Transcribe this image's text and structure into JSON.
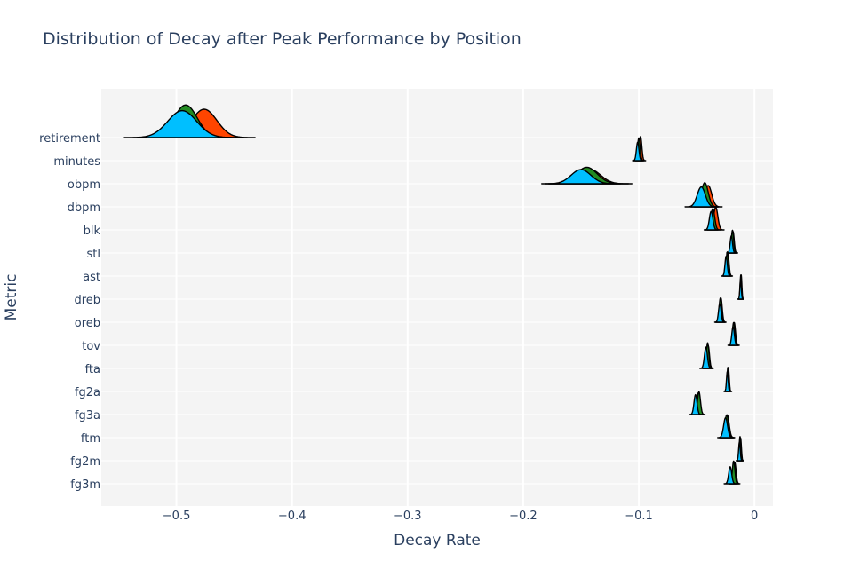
{
  "chart_data": {
    "type": "ridgeline",
    "title": "Distribution of Decay after Peak Performance by Position",
    "xlabel": "Decay Rate",
    "ylabel": "Metric",
    "xlim": [
      -0.565,
      0.016
    ],
    "x_ticks": [
      -0.5,
      -0.4,
      -0.3,
      -0.2,
      -0.1,
      0
    ],
    "x_tick_labels": [
      "−0.5",
      "−0.4",
      "−0.3",
      "−0.2",
      "−0.1",
      "0"
    ],
    "grid": true,
    "legend": "none",
    "colors": {
      "plot_bg": "#f4f4f4",
      "grid": "#ffffff",
      "text": "#2a3f5f",
      "series_red": "#ff4500",
      "series_green": "#228b22",
      "series_blue": "#00bfff",
      "outline": "#000000"
    },
    "categories": [
      "retirement",
      "minutes",
      "obpm",
      "dbpm",
      "blk",
      "stl",
      "ast",
      "dreb",
      "oreb",
      "tov",
      "fta",
      "fg2a",
      "fg3a",
      "ftm",
      "fg2m",
      "fg3m"
    ],
    "series": [
      {
        "color": "#ff4500",
        "distributions": [
          {
            "category": "retirement",
            "mean": -0.476,
            "sd": 0.011,
            "height": 1.0
          },
          {
            "category": "minutes",
            "mean": -0.0985,
            "sd": 0.0011,
            "height": 0.85
          },
          {
            "category": "obpm",
            "mean": -0.142,
            "sd": 0.009,
            "height": 0.5
          },
          {
            "category": "dbpm",
            "mean": -0.04,
            "sd": 0.003,
            "height": 0.75
          },
          {
            "category": "blk",
            "mean": -0.0335,
            "sd": 0.0018,
            "height": 0.8
          },
          {
            "category": "stl",
            "mean": -0.0185,
            "sd": 0.001,
            "height": 0.75
          },
          {
            "category": "ast",
            "mean": -0.023,
            "sd": 0.001,
            "height": 0.8
          },
          {
            "category": "dreb",
            "mean": -0.0115,
            "sd": 0.0006,
            "height": 0.85
          },
          {
            "category": "oreb",
            "mean": -0.029,
            "sd": 0.0011,
            "height": 0.85
          },
          {
            "category": "tov",
            "mean": -0.0175,
            "sd": 0.0011,
            "height": 0.8
          },
          {
            "category": "fta",
            "mean": -0.04,
            "sd": 0.0011,
            "height": 0.8
          },
          {
            "category": "fg2a",
            "mean": -0.0225,
            "sd": 0.0007,
            "height": 0.8
          },
          {
            "category": "fg3a",
            "mean": -0.049,
            "sd": 0.0013,
            "height": 0.75
          },
          {
            "category": "ftm",
            "mean": -0.0235,
            "sd": 0.0016,
            "height": 0.8
          },
          {
            "category": "fg2m",
            "mean": -0.012,
            "sd": 0.0007,
            "height": 0.8
          },
          {
            "category": "fg3m",
            "mean": -0.017,
            "sd": 0.0011,
            "height": 0.75
          }
        ]
      },
      {
        "color": "#228b22",
        "distributions": [
          {
            "category": "retirement",
            "mean": -0.492,
            "sd": 0.01,
            "height": 1.15
          },
          {
            "category": "minutes",
            "mean": -0.1,
            "sd": 0.0011,
            "height": 0.8
          },
          {
            "category": "obpm",
            "mean": -0.145,
            "sd": 0.009,
            "height": 0.58
          },
          {
            "category": "dbpm",
            "mean": -0.043,
            "sd": 0.003,
            "height": 0.85
          },
          {
            "category": "blk",
            "mean": -0.036,
            "sd": 0.0016,
            "height": 0.75
          },
          {
            "category": "stl",
            "mean": -0.019,
            "sd": 0.001,
            "height": 0.8
          },
          {
            "category": "ast",
            "mean": -0.0235,
            "sd": 0.001,
            "height": 0.85
          },
          {
            "category": "dreb",
            "mean": -0.0118,
            "sd": 0.0006,
            "height": 0.85
          },
          {
            "category": "oreb",
            "mean": -0.0295,
            "sd": 0.0011,
            "height": 0.85
          },
          {
            "category": "tov",
            "mean": -0.018,
            "sd": 0.0011,
            "height": 0.8
          },
          {
            "category": "fta",
            "mean": -0.0405,
            "sd": 0.0011,
            "height": 0.9
          },
          {
            "category": "fg2a",
            "mean": -0.023,
            "sd": 0.0007,
            "height": 0.85
          },
          {
            "category": "fg3a",
            "mean": -0.048,
            "sd": 0.0013,
            "height": 0.8
          },
          {
            "category": "ftm",
            "mean": -0.024,
            "sd": 0.0016,
            "height": 0.8
          },
          {
            "category": "fg2m",
            "mean": -0.0125,
            "sd": 0.0007,
            "height": 0.85
          },
          {
            "category": "fg3m",
            "mean": -0.018,
            "sd": 0.0011,
            "height": 0.8
          }
        ]
      },
      {
        "color": "#00bfff",
        "distributions": [
          {
            "category": "retirement",
            "mean": -0.495,
            "sd": 0.0125,
            "height": 0.95
          },
          {
            "category": "minutes",
            "mean": -0.101,
            "sd": 0.0011,
            "height": 0.65
          },
          {
            "category": "obpm",
            "mean": -0.15,
            "sd": 0.0085,
            "height": 0.5
          },
          {
            "category": "dbpm",
            "mean": -0.046,
            "sd": 0.0035,
            "height": 0.7
          },
          {
            "category": "blk",
            "mean": -0.0375,
            "sd": 0.0015,
            "height": 0.65
          },
          {
            "category": "stl",
            "mean": -0.02,
            "sd": 0.001,
            "height": 0.6
          },
          {
            "category": "ast",
            "mean": -0.0245,
            "sd": 0.001,
            "height": 0.7
          },
          {
            "category": "dreb",
            "mean": -0.012,
            "sd": 0.0006,
            "height": 0.7
          },
          {
            "category": "oreb",
            "mean": -0.03,
            "sd": 0.0011,
            "height": 0.65
          },
          {
            "category": "tov",
            "mean": -0.0185,
            "sd": 0.0011,
            "height": 0.65
          },
          {
            "category": "fta",
            "mean": -0.042,
            "sd": 0.0013,
            "height": 0.75
          },
          {
            "category": "fg2a",
            "mean": -0.0235,
            "sd": 0.0007,
            "height": 0.7
          },
          {
            "category": "fg3a",
            "mean": -0.051,
            "sd": 0.0013,
            "height": 0.7
          },
          {
            "category": "ftm",
            "mean": -0.025,
            "sd": 0.0017,
            "height": 0.7
          },
          {
            "category": "fg2m",
            "mean": -0.013,
            "sd": 0.0007,
            "height": 0.65
          },
          {
            "category": "fg3m",
            "mean": -0.021,
            "sd": 0.0013,
            "height": 0.6
          }
        ]
      }
    ]
  }
}
